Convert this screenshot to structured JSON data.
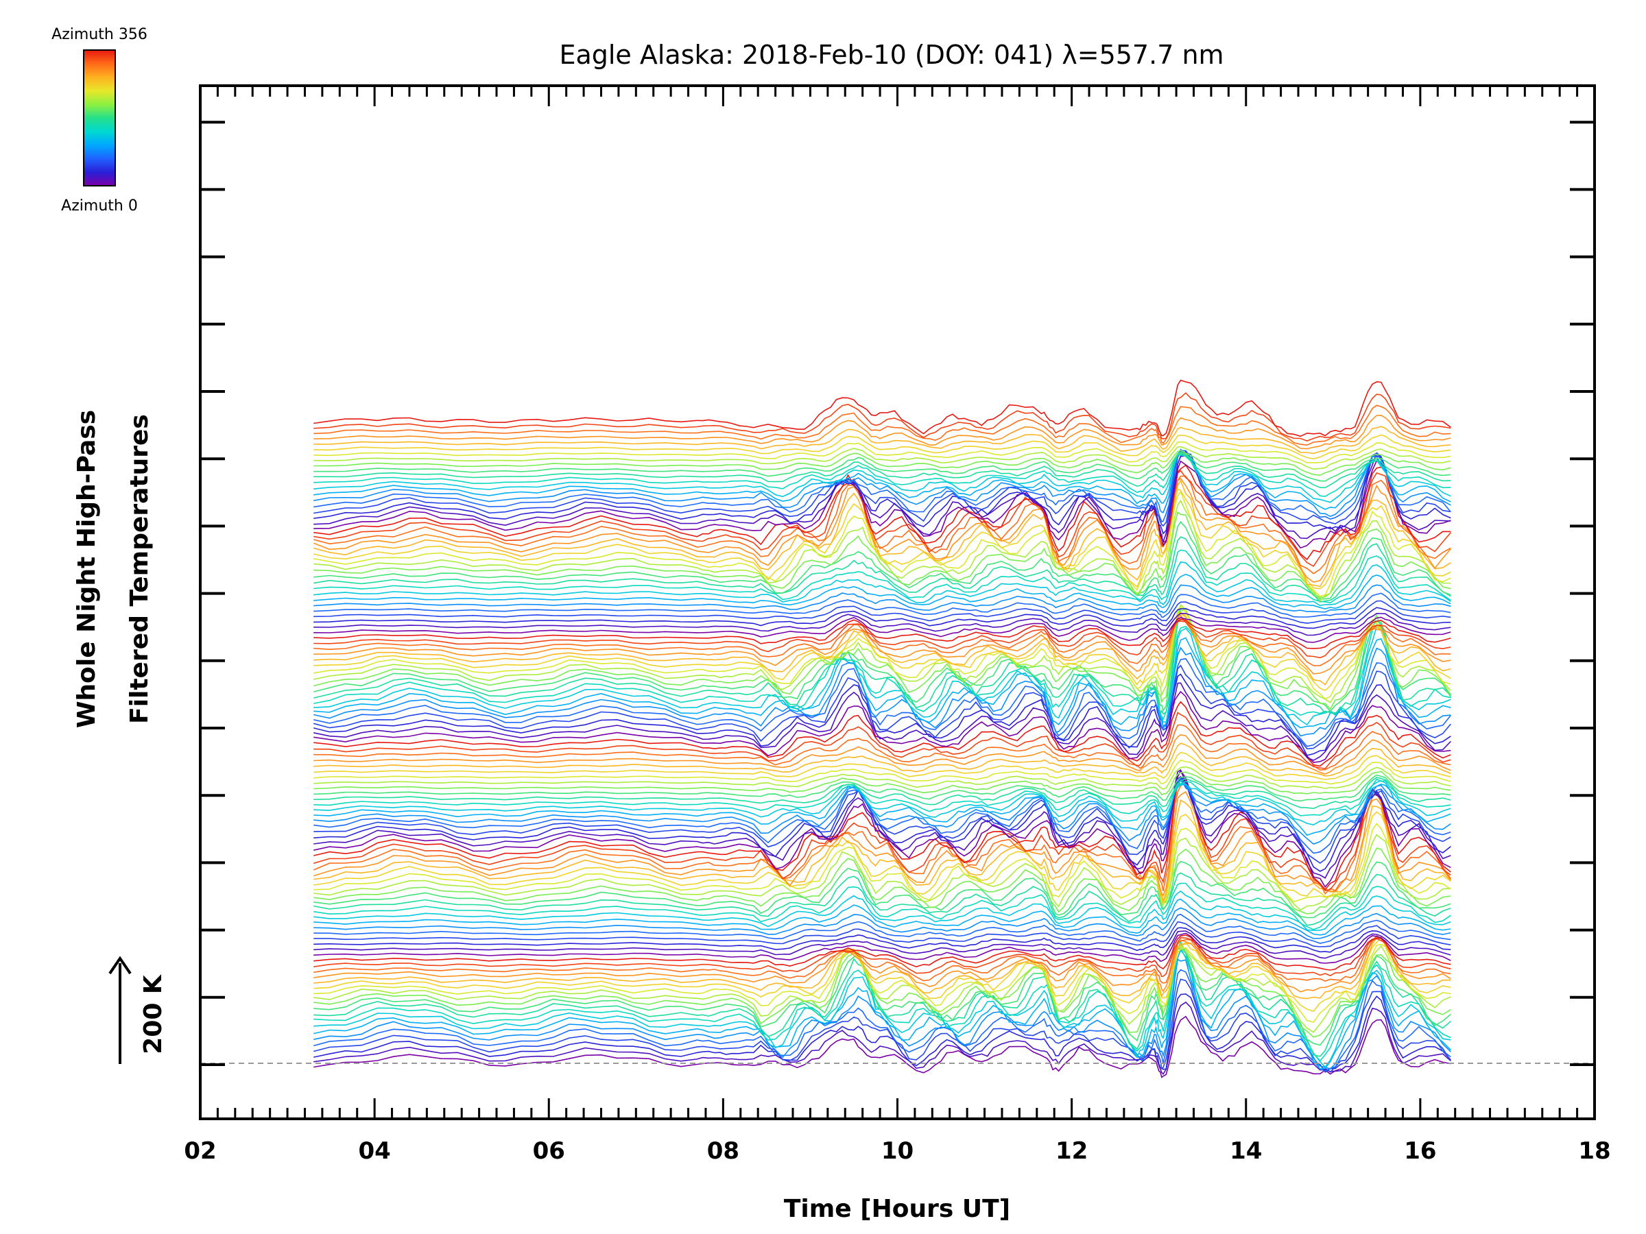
{
  "chart_data": {
    "type": "line",
    "title": "Eagle Alaska: 2018-Feb-10 (DOY: 041) λ=557.7 nm",
    "xlabel": "Time [Hours UT]",
    "ylabel_line1": "Whole Night High-Pass",
    "ylabel_line2": "Filtered Temperatures",
    "xlim": [
      2,
      18
    ],
    "x_ticks": [
      "02",
      "04",
      "06",
      "08",
      "10",
      "12",
      "14",
      "16",
      "18"
    ],
    "scale_label": "200 K",
    "colorbar": {
      "top_label": "Azimuth 356",
      "bottom_label": "Azimuth 0",
      "colormap": [
        "#7a00a8",
        "#2a1fd8",
        "#1f63ff",
        "#00a8ff",
        "#00d9d0",
        "#26e08a",
        "#8ef040",
        "#e8e82a",
        "#ffb020",
        "#ff6a18",
        "#e81810"
      ]
    },
    "grid": false,
    "legend": "none",
    "stack_groups": 6,
    "traces_per_group": 20,
    "x_start_hours": 3.3,
    "x_end_hours": 16.35,
    "times": [
      3.3,
      4.4,
      5.5,
      6.6,
      7.7,
      8.1,
      8.6,
      9.1,
      9.5,
      9.8,
      10.3,
      10.7,
      11.1,
      11.65,
      11.85,
      12.2,
      12.75,
      12.95,
      13.05,
      13.25,
      13.6,
      14.0,
      14.4,
      14.85,
      15.2,
      15.5,
      15.8,
      16.35
    ],
    "base_profile": [
      0,
      1,
      0,
      1,
      0,
      0,
      -1,
      1,
      5,
      1,
      -0.5,
      0.5,
      1.5,
      3,
      -0.5,
      2,
      -2,
      1,
      -1.5,
      8,
      2,
      3,
      0,
      -3,
      0,
      7,
      1,
      -1
    ]
  }
}
